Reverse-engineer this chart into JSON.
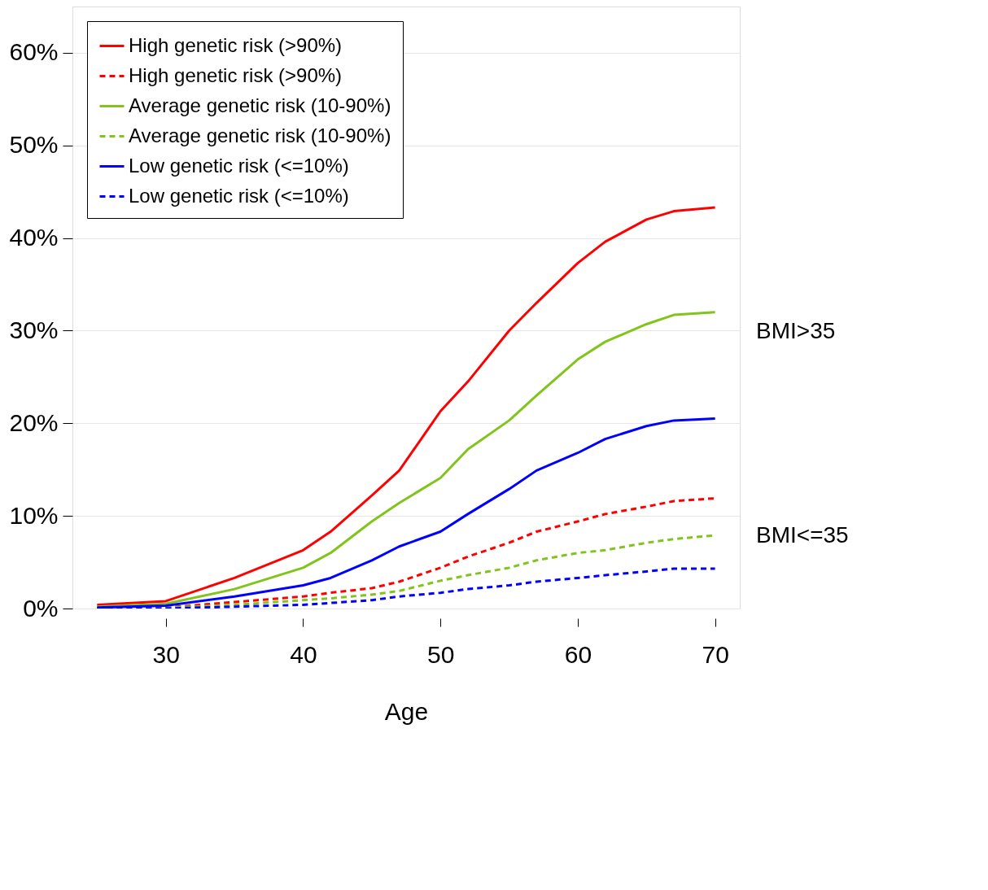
{
  "chart_data": {
    "type": "line",
    "xlabel": "Age",
    "legend": "top left",
    "grid": "y",
    "x": [
      25,
      30,
      35,
      40,
      42,
      45,
      47,
      50,
      52,
      55,
      57,
      60,
      62,
      65,
      67,
      70
    ],
    "xlim": [
      23.2,
      71.8
    ],
    "xticks": [
      30,
      40,
      50,
      60,
      70
    ],
    "ylim": [
      0,
      65
    ],
    "yticks": [
      {
        "value": 0,
        "label": "0%"
      },
      {
        "value": 10,
        "label": "10%"
      },
      {
        "value": 20,
        "label": "20%"
      },
      {
        "value": 30,
        "label": "30%"
      },
      {
        "value": 40,
        "label": "40%"
      },
      {
        "value": 50,
        "label": "50%"
      },
      {
        "value": 60,
        "label": "60%"
      }
    ],
    "series": [
      {
        "name": "High genetic risk (>90%)",
        "color": "#ff0000",
        "line_style": "solid",
        "values": [
          0.4,
          0.8,
          3.3,
          6.3,
          8.3,
          12.2,
          14.9,
          21.3,
          24.5,
          30,
          33,
          37.3,
          39.6,
          42,
          42.9,
          43.3
        ]
      },
      {
        "name": "High genetic risk (>90%)",
        "color": "#ff0000",
        "line_style": "dashed",
        "values": [
          0,
          0.1,
          0.7,
          1.3,
          1.7,
          2.2,
          2.9,
          4.4,
          5.6,
          7.1,
          8.3,
          9.4,
          10.2,
          11,
          11.6,
          11.9
        ]
      },
      {
        "name": "Average genetic risk (10-90%)",
        "color": "#80c41c",
        "line_style": "solid",
        "values": [
          0.2,
          0.5,
          2.1,
          4.4,
          6,
          9.4,
          11.4,
          14.1,
          17.2,
          20.3,
          23,
          26.9,
          28.8,
          30.7,
          31.7,
          32
        ]
      },
      {
        "name": "Average genetic risk (10-90%)",
        "color": "#80c41c",
        "line_style": "dashed",
        "values": [
          0,
          0.1,
          0.4,
          0.9,
          1.1,
          1.5,
          1.9,
          3,
          3.6,
          4.4,
          5.2,
          6,
          6.3,
          7.1,
          7.5,
          7.9
        ]
      },
      {
        "name": "Low genetic risk (<=10%)",
        "color": "#0000ff",
        "line_style": "solid",
        "values": [
          0.1,
          0.3,
          1.3,
          2.5,
          3.3,
          5.2,
          6.7,
          8.3,
          10.2,
          12.9,
          14.9,
          16.8,
          18.3,
          19.7,
          20.3,
          20.5
        ]
      },
      {
        "name": "Low genetic risk (<=10%)",
        "color": "#0000ff",
        "line_style": "dashed",
        "values": [
          0,
          0,
          0.2,
          0.4,
          0.6,
          0.9,
          1.3,
          1.7,
          2.1,
          2.5,
          2.9,
          3.3,
          3.6,
          4,
          4.3,
          4.3
        ]
      }
    ],
    "annotations": [
      "BMI>35",
      "BMI<=35"
    ]
  }
}
